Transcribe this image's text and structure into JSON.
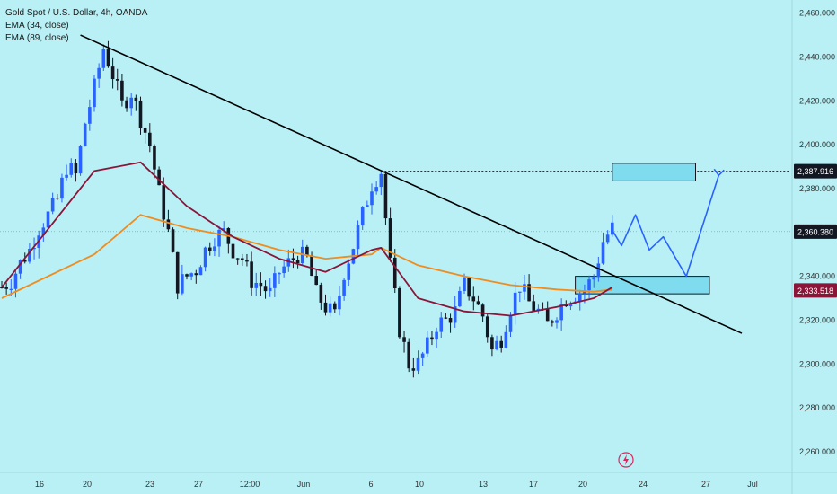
{
  "legend": {
    "title": "Gold Spot / U.S. Dollar, 4h, OANDA",
    "ema1": "EMA (34, close)",
    "ema2": "EMA (89, close)"
  },
  "colors": {
    "background": "#b8f0f5",
    "bull": "#2962ff",
    "bear": "#131722",
    "ema34": "#8b1538",
    "ema89": "#f08c1e",
    "trendline": "#000000",
    "zone_fill": "#7fdcee",
    "projection": "#2962ff",
    "current_price_tag": "#131722",
    "ema34_tag": "#8b1538"
  },
  "chart_data": {
    "type": "candlestick",
    "title": "Gold Spot / U.S. Dollar, 4h, OANDA",
    "ylim": [
      2253,
      2466
    ],
    "y_ticks": [
      "2,460.000",
      "2,440.000",
      "2,420.000",
      "2,400.000",
      "2,380.000",
      "2,360.000",
      "2,340.000",
      "2,320.000",
      "2,300.000",
      "2,280.000",
      "2,260.000"
    ],
    "x_ticks": [
      "16",
      "20",
      "23",
      "27",
      "12:00",
      "Jun",
      "6",
      "10",
      "13",
      "17",
      "20",
      "24",
      "27",
      "Jul"
    ],
    "price_tags": [
      {
        "label": "2,387.916",
        "value": 2387.916,
        "role": "target"
      },
      {
        "label": "2,360.380",
        "value": 2360.38,
        "role": "current"
      },
      {
        "label": "2,333.518",
        "value": 2333.518,
        "role": "ema"
      }
    ],
    "ohlc_close_path": [
      [
        0,
        2335
      ],
      [
        2,
        2338
      ],
      [
        4,
        2346
      ],
      [
        6,
        2352
      ],
      [
        8,
        2362
      ],
      [
        10,
        2368
      ],
      [
        12,
        2375
      ],
      [
        14,
        2390
      ],
      [
        16,
        2386
      ],
      [
        18,
        2410
      ],
      [
        20,
        2426
      ],
      [
        22,
        2444
      ],
      [
        24,
        2432
      ],
      [
        26,
        2418
      ],
      [
        28,
        2424
      ],
      [
        30,
        2412
      ],
      [
        32,
        2400
      ],
      [
        34,
        2378
      ],
      [
        36,
        2360
      ],
      [
        38,
        2336
      ],
      [
        40,
        2340
      ],
      [
        42,
        2343
      ],
      [
        44,
        2352
      ],
      [
        46,
        2358
      ],
      [
        48,
        2360
      ],
      [
        50,
        2352
      ],
      [
        52,
        2348
      ],
      [
        54,
        2338
      ],
      [
        56,
        2336
      ],
      [
        58,
        2332
      ],
      [
        60,
        2342
      ],
      [
        62,
        2346
      ],
      [
        64,
        2350
      ],
      [
        66,
        2348
      ],
      [
        68,
        2332
      ],
      [
        70,
        2326
      ],
      [
        72,
        2322
      ],
      [
        74,
        2342
      ],
      [
        76,
        2354
      ],
      [
        78,
        2368
      ],
      [
        80,
        2382
      ],
      [
        82,
        2388
      ],
      [
        84,
        2345
      ],
      [
        86,
        2316
      ],
      [
        88,
        2300
      ],
      [
        90,
        2300
      ],
      [
        92,
        2308
      ],
      [
        94,
        2318
      ],
      [
        96,
        2320
      ],
      [
        98,
        2324
      ],
      [
        100,
        2336
      ],
      [
        102,
        2330
      ],
      [
        104,
        2322
      ],
      [
        106,
        2306
      ],
      [
        108,
        2312
      ],
      [
        110,
        2326
      ],
      [
        112,
        2336
      ],
      [
        114,
        2328
      ],
      [
        116,
        2324
      ],
      [
        118,
        2318
      ],
      [
        120,
        2324
      ],
      [
        122,
        2330
      ],
      [
        124,
        2332
      ],
      [
        126,
        2334
      ],
      [
        128,
        2340
      ],
      [
        130,
        2356
      ],
      [
        132,
        2362
      ]
    ],
    "ema34": [
      [
        0,
        2335
      ],
      [
        20,
        2388
      ],
      [
        30,
        2392
      ],
      [
        40,
        2372
      ],
      [
        50,
        2358
      ],
      [
        60,
        2348
      ],
      [
        70,
        2342
      ],
      [
        80,
        2352
      ],
      [
        82,
        2353
      ],
      [
        90,
        2330
      ],
      [
        100,
        2324
      ],
      [
        110,
        2322
      ],
      [
        120,
        2326
      ],
      [
        128,
        2330
      ],
      [
        132,
        2335
      ]
    ],
    "ema89": [
      [
        0,
        2330
      ],
      [
        20,
        2350
      ],
      [
        30,
        2368
      ],
      [
        40,
        2362
      ],
      [
        50,
        2358
      ],
      [
        60,
        2352
      ],
      [
        70,
        2348
      ],
      [
        80,
        2350
      ],
      [
        82,
        2353
      ],
      [
        90,
        2345
      ],
      [
        100,
        2340
      ],
      [
        110,
        2336
      ],
      [
        120,
        2334
      ],
      [
        128,
        2333
      ],
      [
        132,
        2334
      ]
    ],
    "trendline": [
      [
        17,
        2450
      ],
      [
        160,
        2314
      ]
    ],
    "resistance_zone": [
      2383.5,
      2391.5
    ],
    "support_zone": [
      2332,
      2340
    ],
    "target_level": 2387.916,
    "projection_path": [
      [
        132,
        2361
      ],
      [
        134,
        2354
      ],
      [
        137,
        2368
      ],
      [
        140,
        2352
      ],
      [
        143,
        2358
      ],
      [
        148,
        2340
      ],
      [
        155,
        2386
      ]
    ]
  }
}
